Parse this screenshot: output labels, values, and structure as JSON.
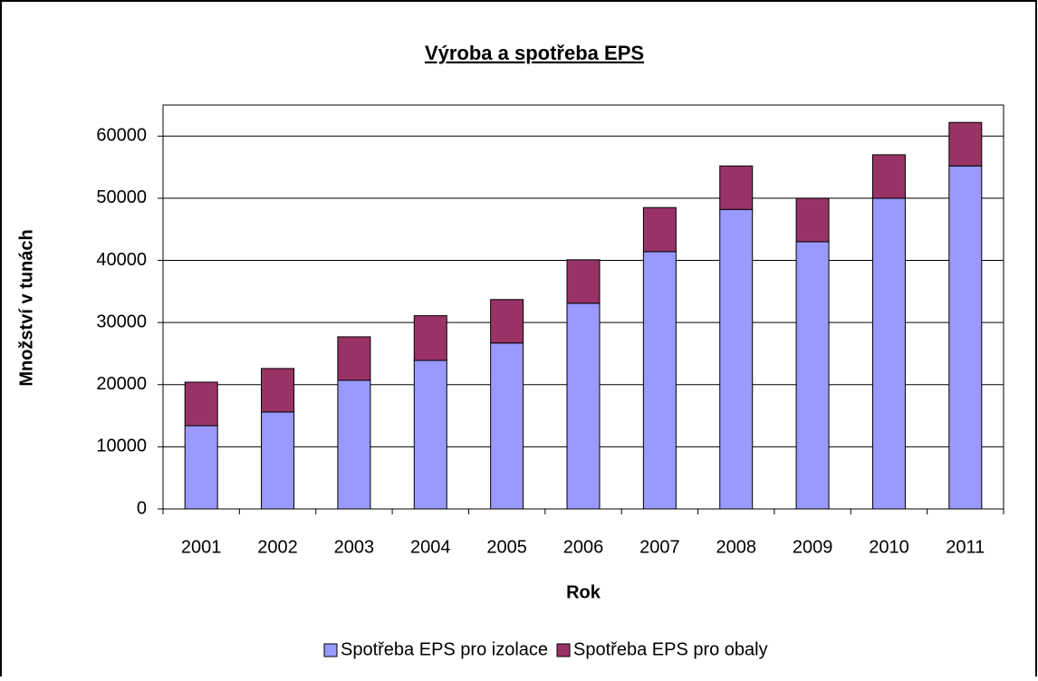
{
  "chart_data": {
    "type": "stacked_bar",
    "title": "Výroba a spotřeba EPS",
    "x_label": "Rok",
    "y_label": "Množství v tunách",
    "categories": [
      "2001",
      "2002",
      "2003",
      "2004",
      "2005",
      "2006",
      "2007",
      "2008",
      "2009",
      "2010",
      "2011"
    ],
    "series": [
      {
        "name": "Spotřeba EPS pro izolace",
        "color": "#9999ff",
        "values": [
          13400,
          15600,
          20700,
          23900,
          26700,
          33100,
          41400,
          48200,
          43000,
          50000,
          55200
        ]
      },
      {
        "name": "Spotřeba EPS pro obaly",
        "color": "#993366",
        "values": [
          7000,
          7000,
          7000,
          7200,
          7000,
          7000,
          7100,
          7000,
          7000,
          7000,
          7000
        ]
      }
    ],
    "ylim": [
      0,
      65000
    ],
    "yticks": [
      0,
      10000,
      20000,
      30000,
      40000,
      50000,
      60000
    ],
    "grid": true,
    "legend": "bottom"
  }
}
